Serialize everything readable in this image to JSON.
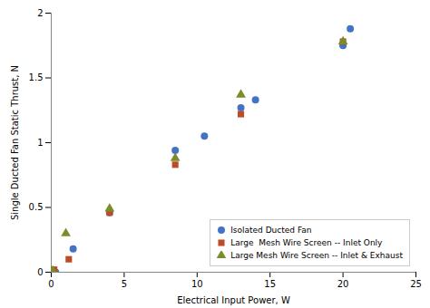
{
  "chart_data": {
    "type": "scatter",
    "xlabel": "Electrical Input Power, W",
    "ylabel": "Single Ducted Fan Static Thrust, N",
    "xlim": [
      0,
      25
    ],
    "ylim": [
      0,
      2
    ],
    "xticks": [
      0,
      5,
      10,
      15,
      20,
      25
    ],
    "yticks": [
      0,
      0.5,
      1,
      1.5,
      2
    ],
    "legend": "lower right",
    "series": [
      {
        "name": "Isolated Ducted Fan",
        "color": "#4472C4",
        "marker": "circle",
        "x": [
          0.3,
          1.5,
          4.0,
          8.5,
          10.5,
          13.0,
          14.0,
          20.0,
          20.5
        ],
        "values": [
          0.0,
          0.18,
          0.46,
          0.94,
          1.05,
          1.27,
          1.33,
          1.75,
          1.88
        ]
      },
      {
        "name": "Large  Mesh Wire Screen -- Inlet Only",
        "color": "#BE4B27",
        "marker": "square",
        "x": [
          0.2,
          1.2,
          4.0,
          8.5,
          13.0,
          20.0
        ],
        "values": [
          0.02,
          0.1,
          0.46,
          0.83,
          1.22,
          1.78
        ]
      },
      {
        "name": "Large Mesh Wire Screen -- Inlet & Exhaust",
        "color": "#7B8C2A",
        "marker": "triangle",
        "x": [
          0.1,
          1.0,
          4.0,
          8.5,
          13.0,
          20.0
        ],
        "values": [
          0.01,
          0.3,
          0.49,
          0.88,
          1.37,
          1.78
        ]
      }
    ]
  }
}
